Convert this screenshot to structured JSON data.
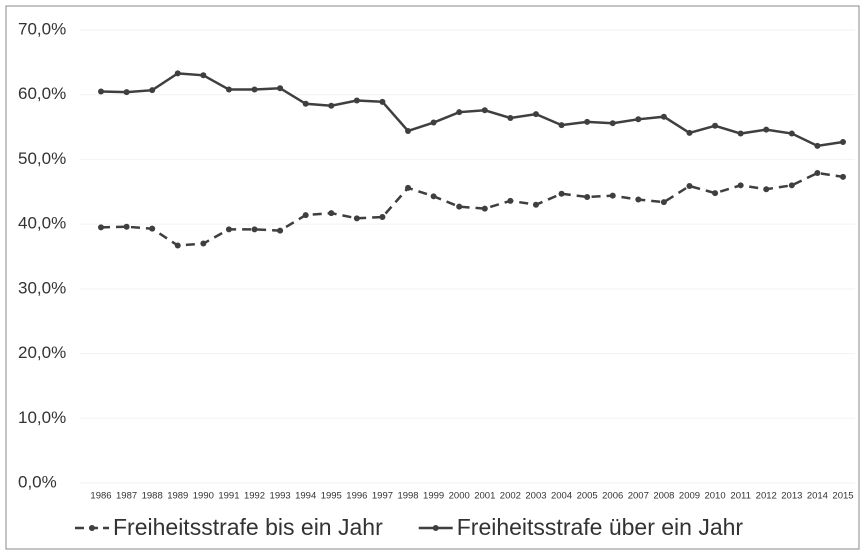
{
  "chart_data": {
    "type": "line",
    "categories": [
      "1986",
      "1987",
      "1988",
      "1989",
      "1990",
      "1991",
      "1992",
      "1993",
      "1994",
      "1995",
      "1996",
      "1997",
      "1998",
      "1999",
      "2000",
      "2001",
      "2002",
      "2003",
      "2004",
      "2005",
      "2006",
      "2007",
      "2008",
      "2009",
      "2010",
      "2011",
      "2012",
      "2013",
      "2014",
      "2015"
    ],
    "series": [
      {
        "name": "Freiheitsstrafe bis ein Jahr",
        "color": "#3f3f3f",
        "dash": true,
        "values": [
          39.5,
          39.6,
          39.3,
          36.7,
          37.0,
          39.2,
          39.2,
          39.0,
          41.4,
          41.7,
          40.9,
          41.1,
          45.6,
          44.3,
          42.7,
          42.4,
          43.6,
          43.0,
          44.7,
          44.2,
          44.4,
          43.8,
          43.4,
          45.9,
          44.8,
          46.0,
          45.4,
          46.0,
          47.9,
          47.3
        ]
      },
      {
        "name": "Freiheitsstrafe über ein Jahr",
        "color": "#3f3f3f",
        "dash": false,
        "values": [
          60.5,
          60.4,
          60.7,
          63.3,
          63.0,
          60.8,
          60.8,
          61.0,
          58.6,
          58.3,
          59.1,
          58.9,
          54.4,
          55.7,
          57.3,
          57.6,
          56.4,
          57.0,
          55.3,
          55.8,
          55.6,
          56.2,
          56.6,
          54.1,
          55.2,
          54.0,
          54.6,
          54.0,
          52.1,
          52.7
        ]
      }
    ],
    "ylim": [
      0,
      70
    ],
    "yticks": [
      {
        "value": 0,
        "label": "0,0%"
      },
      {
        "value": 10,
        "label": "10,0%"
      },
      {
        "value": 20,
        "label": "20,0%"
      },
      {
        "value": 30,
        "label": "30,0%"
      },
      {
        "value": 40,
        "label": "40,0%"
      },
      {
        "value": 50,
        "label": "50,0%"
      },
      {
        "value": 60,
        "label": "60,0%"
      },
      {
        "value": 70,
        "label": "70,0%"
      }
    ],
    "grid": true,
    "legend": "bottom"
  }
}
